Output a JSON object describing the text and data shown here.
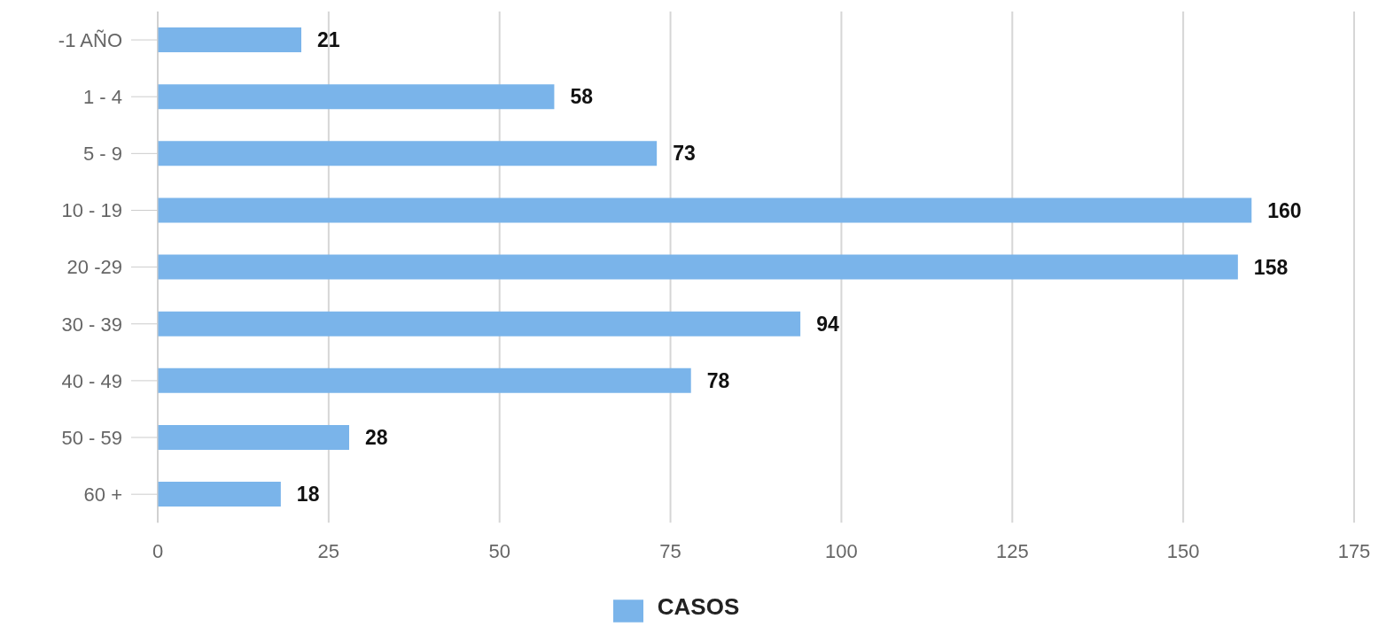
{
  "chart_data": {
    "type": "bar",
    "orientation": "horizontal",
    "categories": [
      "-1 AÑO",
      "1 - 4",
      "5 - 9",
      "10 - 19",
      "20 -29",
      "30 - 39",
      "40 - 49",
      "50 - 59",
      "60 +"
    ],
    "series": [
      {
        "name": "CASOS",
        "color": "#7ab4ea",
        "values": [
          21,
          58,
          73,
          160,
          158,
          94,
          78,
          28,
          18
        ]
      }
    ],
    "xlim": [
      0,
      175
    ],
    "xticks": [
      0,
      25,
      50,
      75,
      100,
      125,
      150,
      175
    ],
    "grid": "x",
    "legend": "bottom",
    "data_labels": true
  }
}
